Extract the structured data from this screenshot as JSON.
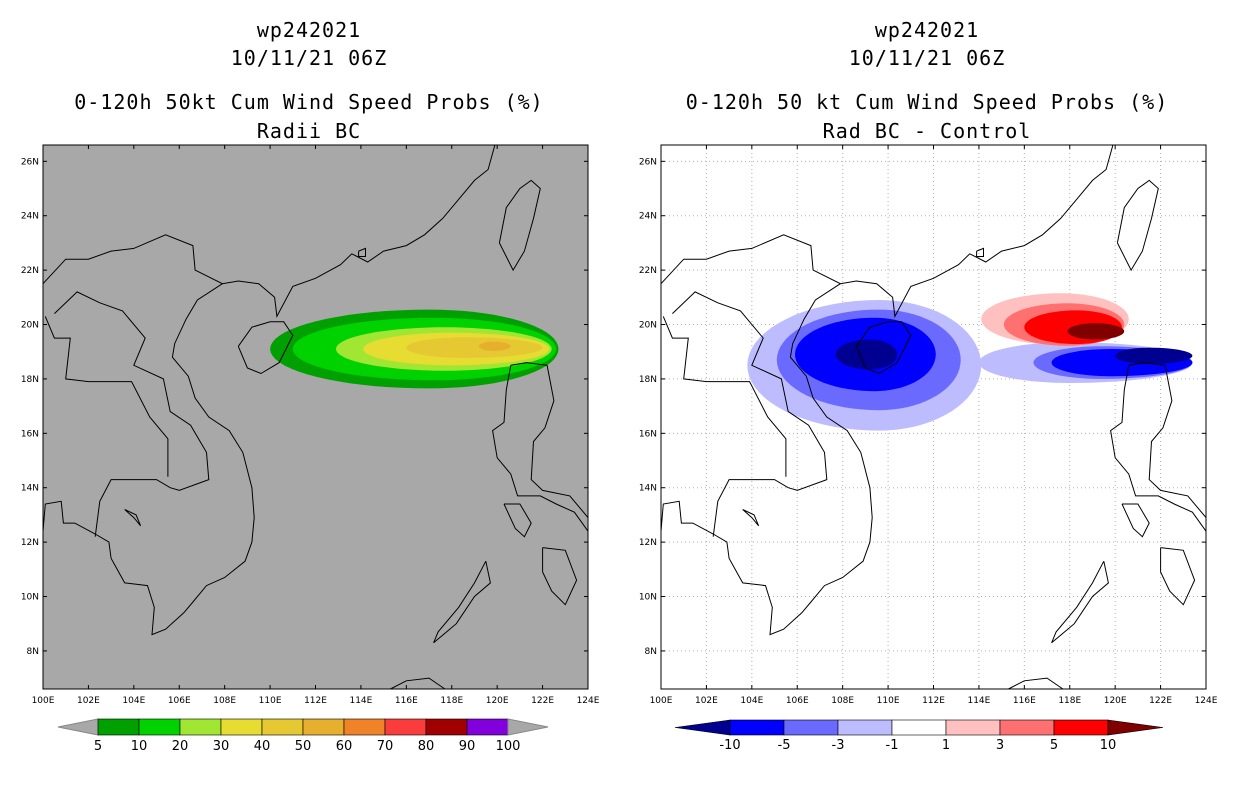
{
  "left_panel": {
    "storm_id": "wp242021",
    "datetime": "10/11/21 06Z",
    "product": "0-120h 50kt Cum Wind Speed Probs (%)",
    "subtitle": "Radii BC",
    "colors": {
      "background": "#a8a8a8",
      "p5": "#00a000",
      "p10": "#00d200",
      "p20": "#a0e632",
      "p30": "#e6dc32",
      "p40": "#e6c832",
      "p50": "#e6af2d",
      "p60": "#f08228",
      "p70": "#fa3c3c",
      "p80": "#a00000",
      "p90": "#8200dc",
      "p100": "#a000c8"
    },
    "colorbar": {
      "labels": [
        "5",
        "10",
        "20",
        "30",
        "40",
        "50",
        "60",
        "70",
        "80",
        "90",
        "100"
      ],
      "colors": [
        "#00a000",
        "#00d200",
        "#a0e632",
        "#e6dc32",
        "#e6c832",
        "#e6af2d",
        "#f08228",
        "#fa3c3c",
        "#a00000",
        "#8200dc"
      ]
    }
  },
  "right_panel": {
    "storm_id": "wp242021",
    "datetime": "10/11/21 06Z",
    "product": "0-120h 50 kt Cum Wind Speed Probs (%)",
    "subtitle": "Rad BC - Control",
    "colorbar": {
      "labels": [
        "-10",
        "-5",
        "-3",
        "-1",
        "1",
        "3",
        "5",
        "10"
      ],
      "colors": [
        "#0000ff",
        "#6a6aff",
        "#bcbcff",
        "#ffffff",
        "#ffc0c0",
        "#ff7070",
        "#ff0000"
      ],
      "left_cap": "#000090",
      "right_cap": "#800000"
    }
  },
  "map": {
    "lon_labels": [
      "100E",
      "102E",
      "104E",
      "106E",
      "108E",
      "110E",
      "112E",
      "114E",
      "116E",
      "118E",
      "120E",
      "122E",
      "124E"
    ],
    "lat_labels": [
      "8N",
      "10N",
      "12N",
      "14N",
      "16N",
      "18N",
      "20N",
      "22N",
      "24N",
      "26N"
    ]
  }
}
